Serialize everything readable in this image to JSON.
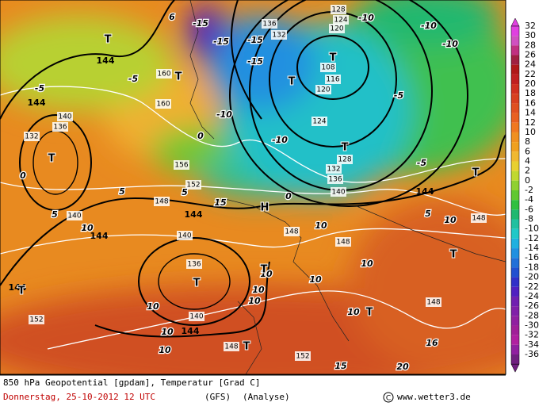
{
  "map": {
    "geopotential_labels": [
      "144",
      "144",
      "144",
      "144",
      "144",
      "144",
      "144",
      "132",
      "136",
      "140",
      "140",
      "140",
      "136",
      "140",
      "148",
      "152",
      "156",
      "160",
      "160",
      "148",
      "148",
      "148",
      "148",
      "152",
      "152",
      "148",
      "128",
      "124",
      "120",
      "136",
      "132",
      "124",
      "120",
      "132",
      "136",
      "140",
      "128",
      "116",
      "108"
    ],
    "temperature_labels": [
      "10",
      "10",
      "10",
      "10",
      "10",
      "10",
      "10",
      "10",
      "16",
      "15",
      "20",
      "10",
      "10",
      "5",
      "5",
      "5",
      "5",
      "0",
      "0",
      "0",
      "-5",
      "-5",
      "-10",
      "-10",
      "-10",
      "-10",
      "-5",
      "-5",
      "-10",
      "-15",
      "-15",
      "-15",
      "-15",
      "15",
      "10",
      "10",
      "6"
    ],
    "pressure_centers": [
      "T",
      "T",
      "T",
      "T",
      "T",
      "T",
      "T",
      "T",
      "T",
      "T",
      "T",
      "T",
      "H",
      "T"
    ]
  },
  "colorbar": {
    "labels": [
      "32",
      "30",
      "28",
      "26",
      "24",
      "22",
      "20",
      "18",
      "16",
      "14",
      "12",
      "10",
      "8",
      "6",
      "4",
      "2",
      "0",
      "-2",
      "-4",
      "-6",
      "-8",
      "-10",
      "-12",
      "-14",
      "-16",
      "-18",
      "-20",
      "-22",
      "-24",
      "-26",
      "-28",
      "-30",
      "-32",
      "-34",
      "-36"
    ],
    "colors": [
      "#e040e0",
      "#d050c0",
      "#c03080",
      "#a02040",
      "#b01818",
      "#c02020",
      "#d03020",
      "#d84020",
      "#e05020",
      "#e86020",
      "#f07820",
      "#f09020",
      "#f0a020",
      "#f0b830",
      "#e8d030",
      "#c0d830",
      "#90d030",
      "#60c830",
      "#30c040",
      "#20b870",
      "#20c0a0",
      "#20c8c8",
      "#20b0e0",
      "#2090e0",
      "#2070d8",
      "#2050d0",
      "#3030c8",
      "#5020c0",
      "#7020b0",
      "#8020a8",
      "#9020a0",
      "#a02098",
      "#b020a0",
      "#9020a0",
      "#702080"
    ]
  },
  "footer": {
    "title": "850 hPa Geopotential [gpdam], Temperatur [Grad C]",
    "date": "Donnerstag, 25-10-2012  12 UTC",
    "model": "(GFS)",
    "run": "(Analyse)",
    "source": "www.wetter3.de"
  }
}
